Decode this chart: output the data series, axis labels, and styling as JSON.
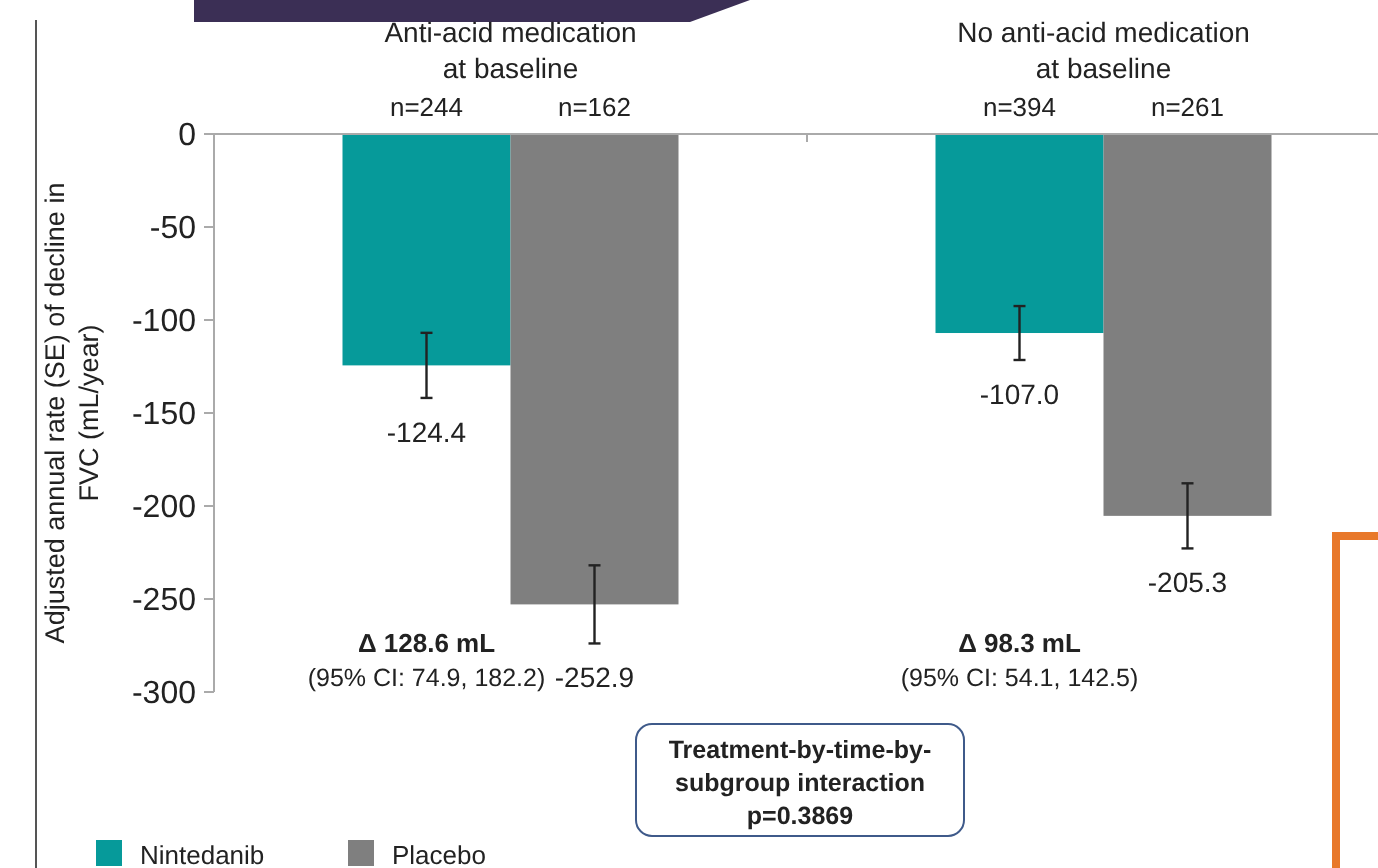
{
  "chart_data": {
    "type": "bar",
    "ylabel": "Adjusted annual rate (SE) of decline in\nFVC (mL/year)",
    "categories": [
      "Anti-acid medication\nat baseline",
      "No anti-acid medication\nat baseline"
    ],
    "series": [
      {
        "name": "Nintedanib",
        "color": "#069a9a",
        "values": [
          -124.4,
          -107.0
        ],
        "errors": [
          17.5,
          14.5
        ],
        "value_labels": [
          "-124.4",
          "-107.0"
        ]
      },
      {
        "name": "Placebo",
        "color": "#7f7f7f",
        "values": [
          -252.9,
          -205.3
        ],
        "errors": [
          21,
          17.5
        ],
        "value_labels": [
          "-252.9",
          "-205.3"
        ]
      }
    ],
    "ylim": [
      -300,
      0
    ],
    "yticks": [
      -300,
      -250,
      -200,
      -150,
      -100,
      -50,
      0
    ],
    "grid": false,
    "legend": "bottom left",
    "annotations": [
      "n=244",
      "n=162",
      "n=394",
      "n=261",
      "Δ 128.6 mL",
      "(95% CI: 74.9, 182.2)",
      "Δ 98.3 mL",
      "(95% CI: 54.1, 142.5)",
      "Treatment-by-time-by-\nsubgroup interaction\np=0.3869"
    ]
  }
}
